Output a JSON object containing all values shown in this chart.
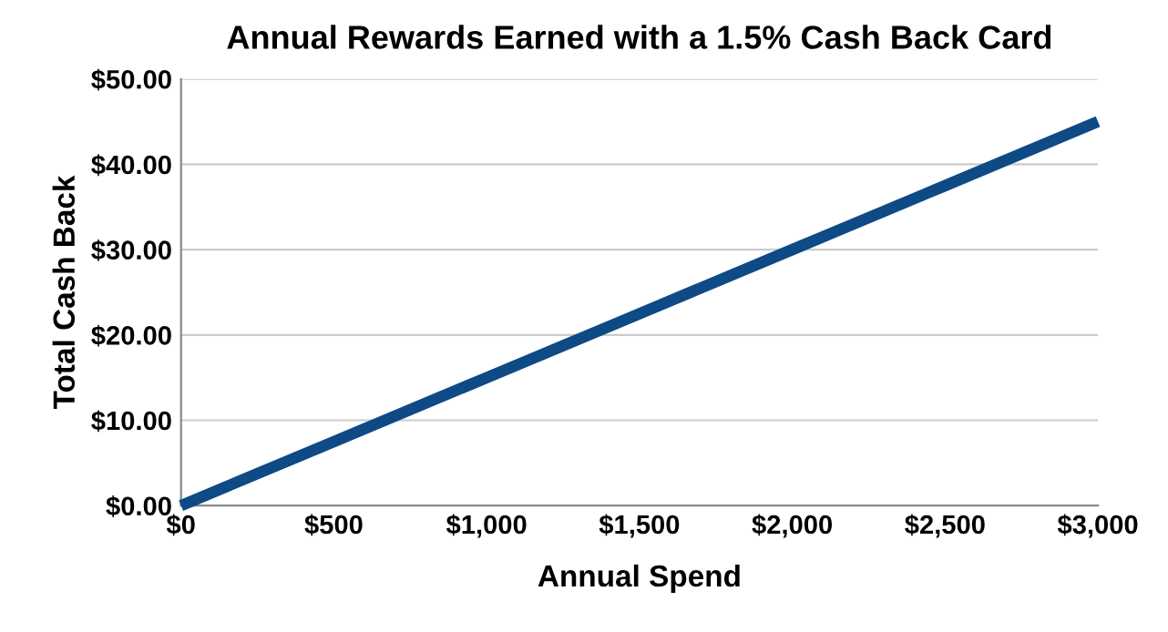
{
  "chart_data": {
    "type": "line",
    "title": "Annual Rewards Earned with a 1.5% Cash Back Card",
    "xlabel": "Annual Spend",
    "ylabel": "Total Cash Back",
    "x": [
      0,
      500,
      1000,
      1500,
      2000,
      2500,
      3000
    ],
    "series": [
      {
        "color": "#0d4a86",
        "values": [
          0,
          7.5,
          15,
          22.5,
          30,
          37.5,
          45
        ]
      }
    ],
    "xlim": [
      0,
      3000
    ],
    "ylim": [
      0,
      50
    ],
    "xticks": [
      {
        "value": 0,
        "label": "$0"
      },
      {
        "value": 500,
        "label": "$500"
      },
      {
        "value": 1000,
        "label": "$1,000"
      },
      {
        "value": 1500,
        "label": "$1,500"
      },
      {
        "value": 2000,
        "label": "$2,000"
      },
      {
        "value": 2500,
        "label": "$2,500"
      },
      {
        "value": 3000,
        "label": "$3,000"
      }
    ],
    "yticks": [
      {
        "value": 0,
        "label": "$0.00"
      },
      {
        "value": 10,
        "label": "$10.00"
      },
      {
        "value": 20,
        "label": "$20.00"
      },
      {
        "value": 30,
        "label": "$30.00"
      },
      {
        "value": 40,
        "label": "$40.00"
      },
      {
        "value": 50,
        "label": "$50.00"
      }
    ],
    "grid": "y",
    "legend": false,
    "marker": "none",
    "line_style": "solid"
  }
}
